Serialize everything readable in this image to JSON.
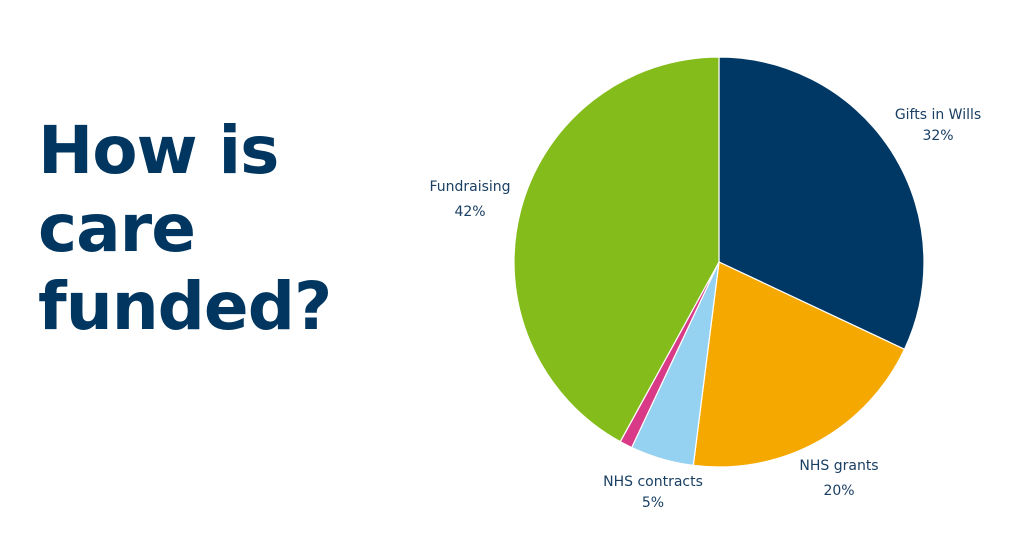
{
  "title_lines": [
    "How is",
    "care",
    "funded?"
  ],
  "colors": {
    "title": "#00365f",
    "label_text": "#1a3f63",
    "background": "#ffffff"
  },
  "chart_data": {
    "type": "pie",
    "title": "",
    "start_angle_deg": 0,
    "direction": "clockwise",
    "slices": [
      {
        "label": "Gifts in Wills",
        "value_text": "32%",
        "value": 32,
        "color": "#003865"
      },
      {
        "label": "NHS grants",
        "value_text": "20%",
        "value": 20,
        "color": "#f5a800"
      },
      {
        "label": "NHS contracts",
        "value_text": "5%",
        "value": 5,
        "color": "#95d1f0"
      },
      {
        "label": "",
        "value_text": "",
        "value": 1,
        "color": "#d93a87"
      },
      {
        "label": "Fundraising",
        "value_text": "42%",
        "value": 42,
        "color": "#84bd1b"
      }
    ]
  }
}
